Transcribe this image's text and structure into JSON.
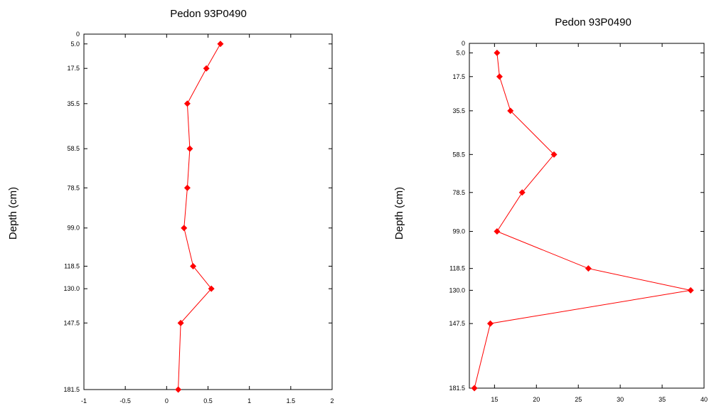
{
  "chart_data": [
    {
      "type": "line",
      "title": "Pedon 93P0490",
      "xlabel": "",
      "ylabel": "Depth (cm)",
      "xlim": [
        -1,
        2
      ],
      "ylim": [
        181.5,
        0
      ],
      "y_inverted": true,
      "grid": false,
      "xticks": [
        "-1",
        "-0.5",
        "0",
        "0.5",
        "1",
        "1.5",
        "2"
      ],
      "yticks": [
        "0",
        "5.0",
        "17.5",
        "35.5",
        "58.5",
        "78.5",
        "99.0",
        "118.5",
        "130.0",
        "147.5",
        "181.5"
      ],
      "series": [
        {
          "color": "#ff0000",
          "marker": "diamond",
          "points": [
            {
              "x": 0.65,
              "y": 5.0
            },
            {
              "x": 0.48,
              "y": 17.5
            },
            {
              "x": 0.25,
              "y": 35.5
            },
            {
              "x": 0.28,
              "y": 58.5
            },
            {
              "x": 0.25,
              "y": 78.5
            },
            {
              "x": 0.21,
              "y": 99.0
            },
            {
              "x": 0.32,
              "y": 118.5
            },
            {
              "x": 0.54,
              "y": 130.0
            },
            {
              "x": 0.17,
              "y": 147.5
            },
            {
              "x": 0.14,
              "y": 181.5
            }
          ]
        }
      ]
    },
    {
      "type": "line",
      "title": "Pedon 93P0490",
      "xlabel": "",
      "ylabel": "Depth (cm)",
      "xlim": [
        12,
        40
      ],
      "ylim": [
        181.5,
        0
      ],
      "y_inverted": true,
      "grid": false,
      "xticks": [
        "15",
        "20",
        "25",
        "30",
        "35",
        "40"
      ],
      "yticks": [
        "0",
        "5.0",
        "17.5",
        "35.5",
        "58.5",
        "78.5",
        "99.0",
        "118.5",
        "130.0",
        "147.5",
        "181.5"
      ],
      "series": [
        {
          "color": "#ff0000",
          "marker": "diamond",
          "points": [
            {
              "x": 15.3,
              "y": 5.0
            },
            {
              "x": 15.6,
              "y": 17.5
            },
            {
              "x": 16.9,
              "y": 35.5
            },
            {
              "x": 22.1,
              "y": 58.5
            },
            {
              "x": 18.3,
              "y": 78.5
            },
            {
              "x": 15.3,
              "y": 99.0
            },
            {
              "x": 26.2,
              "y": 118.5
            },
            {
              "x": 38.4,
              "y": 130.0
            },
            {
              "x": 14.5,
              "y": 147.5
            },
            {
              "x": 12.6,
              "y": 181.5
            }
          ]
        }
      ]
    }
  ]
}
